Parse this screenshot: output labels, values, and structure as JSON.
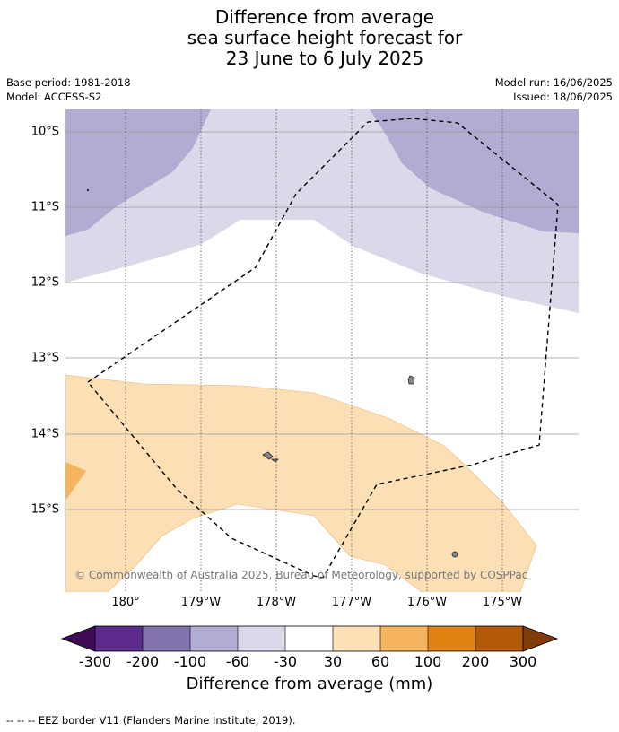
{
  "title": {
    "line1": "Difference from average",
    "line2": "sea surface height forecast for",
    "line3": "23 June to 6 July 2025"
  },
  "meta": {
    "base_period": "Base period: 1981-2018",
    "model": "Model: ACCESS-S2",
    "model_run": "Model run: 16/06/2025",
    "issued": "Issued: 18/06/2025"
  },
  "map": {
    "lat_labels": [
      "10°S",
      "11°S",
      "12°S",
      "13°S",
      "14°S",
      "15°S"
    ],
    "lon_labels": [
      "180°",
      "179°W",
      "178°W",
      "177°W",
      "176°W",
      "175°W"
    ],
    "copyright": "© Commonwealth of Australia 2025, Bureau of Meteorology, supported by COSPPac",
    "colors": {
      "band_minus100_minus60": "#b1acd2",
      "band_minus60_minus30": "#d9d9ea",
      "band_30_60": "#fddfb6",
      "band_60_100": "#f7b45e",
      "land": "#888888",
      "eez_border": "#000000"
    }
  },
  "colorbar": {
    "ticks": [
      "-300",
      "-200",
      "-100",
      "-60",
      "-30",
      "30",
      "60",
      "100",
      "200",
      "300"
    ],
    "colors": [
      "#3f0b56",
      "#5b2a8a",
      "#8272ac",
      "#b1acd2",
      "#d9d9ea",
      "#ffffff",
      "#fddfb6",
      "#f7b45e",
      "#e08214",
      "#b35806",
      "#7f3b08"
    ],
    "label": "Difference from average (mm)"
  },
  "footer": {
    "eez_note": "--  --  -- EEZ border V11 (Flanders Marine Institute, 2019)."
  }
}
